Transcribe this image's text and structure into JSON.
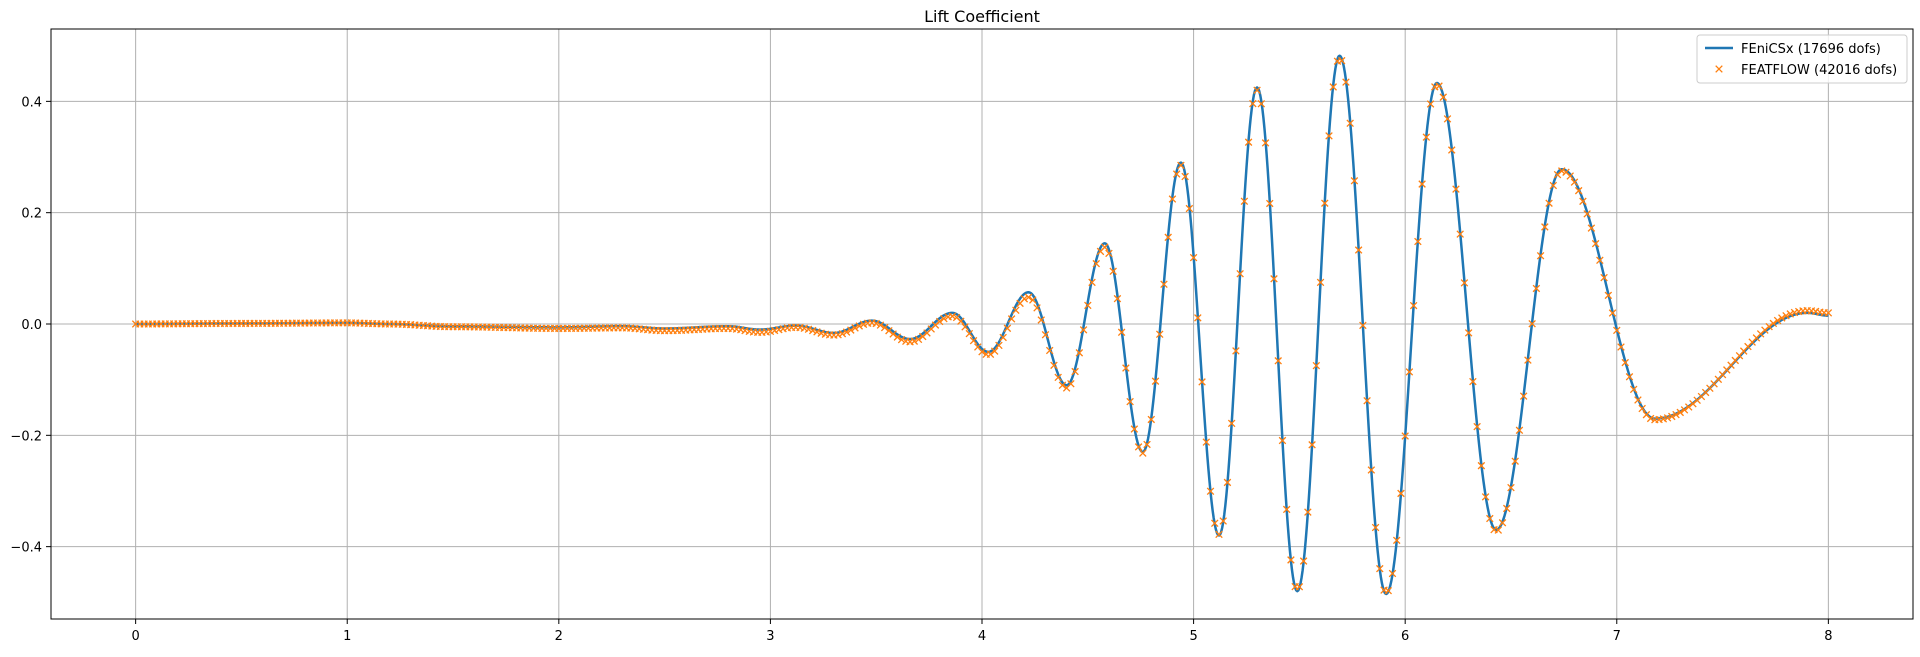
{
  "chart_data": {
    "type": "line",
    "title": "Lift Coefficient",
    "xlabel": "",
    "ylabel": "",
    "xlim": [
      -0.4,
      8.4
    ],
    "ylim": [
      -0.53,
      0.53
    ],
    "x_ticks": [
      0,
      1,
      2,
      3,
      4,
      5,
      6,
      7,
      8
    ],
    "y_ticks": [
      -0.4,
      -0.2,
      0.0,
      0.2,
      0.4
    ],
    "x_tick_labels": [
      "0",
      "1",
      "2",
      "3",
      "4",
      "5",
      "6",
      "7",
      "8"
    ],
    "y_tick_labels": [
      "−0.4",
      "−0.2",
      "0.0",
      "0.2",
      "0.4"
    ],
    "grid": true,
    "legend_position": "top-right",
    "colors": {
      "fenicsx": "#1f77b4",
      "featflow": "#ff7f0e",
      "grid": "#b0b0b0"
    },
    "series": [
      {
        "name": "FEniCSx (17696 dofs)",
        "style": "line",
        "points": [
          [
            0.0,
            0.0
          ],
          [
            0.5,
            0.001
          ],
          [
            1.0,
            0.002
          ],
          [
            1.2,
            0.0
          ],
          [
            1.5,
            -0.004
          ],
          [
            2.0,
            -0.006
          ],
          [
            2.3,
            -0.004
          ],
          [
            2.5,
            -0.008
          ],
          [
            2.8,
            -0.004
          ],
          [
            2.95,
            -0.01
          ],
          [
            3.12,
            -0.003
          ],
          [
            3.3,
            -0.016
          ],
          [
            3.48,
            0.006
          ],
          [
            3.66,
            -0.027
          ],
          [
            3.86,
            0.02
          ],
          [
            4.03,
            -0.05
          ],
          [
            4.22,
            0.057
          ],
          [
            4.4,
            -0.11
          ],
          [
            4.58,
            0.145
          ],
          [
            4.76,
            -0.23
          ],
          [
            4.94,
            0.29
          ],
          [
            5.12,
            -0.38
          ],
          [
            5.3,
            0.425
          ],
          [
            5.49,
            -0.48
          ],
          [
            5.69,
            0.482
          ],
          [
            5.91,
            -0.485
          ],
          [
            6.15,
            0.433
          ],
          [
            6.43,
            -0.37
          ],
          [
            6.74,
            0.278
          ],
          [
            7.18,
            -0.17
          ],
          [
            7.9,
            0.02
          ],
          [
            8.0,
            0.015
          ]
        ]
      },
      {
        "name": "FEATFLOW (42016 dofs)",
        "style": "marker-x",
        "points": [
          [
            0.0,
            0.0
          ],
          [
            0.5,
            0.001
          ],
          [
            1.0,
            0.002
          ],
          [
            1.2,
            0.0
          ],
          [
            1.5,
            -0.005
          ],
          [
            2.0,
            -0.008
          ],
          [
            2.3,
            -0.007
          ],
          [
            2.5,
            -0.012
          ],
          [
            2.8,
            -0.008
          ],
          [
            2.95,
            -0.015
          ],
          [
            3.12,
            -0.006
          ],
          [
            3.3,
            -0.02
          ],
          [
            3.48,
            0.002
          ],
          [
            3.66,
            -0.032
          ],
          [
            3.86,
            0.014
          ],
          [
            4.03,
            -0.055
          ],
          [
            4.22,
            0.048
          ],
          [
            4.4,
            -0.115
          ],
          [
            4.58,
            0.138
          ],
          [
            4.76,
            -0.232
          ],
          [
            4.94,
            0.285
          ],
          [
            5.12,
            -0.378
          ],
          [
            5.3,
            0.42
          ],
          [
            5.49,
            -0.478
          ],
          [
            5.69,
            0.478
          ],
          [
            5.91,
            -0.483
          ],
          [
            6.15,
            0.43
          ],
          [
            6.43,
            -0.372
          ],
          [
            6.74,
            0.275
          ],
          [
            7.18,
            -0.172
          ],
          [
            7.9,
            0.024
          ],
          [
            8.0,
            0.02
          ]
        ]
      }
    ]
  }
}
